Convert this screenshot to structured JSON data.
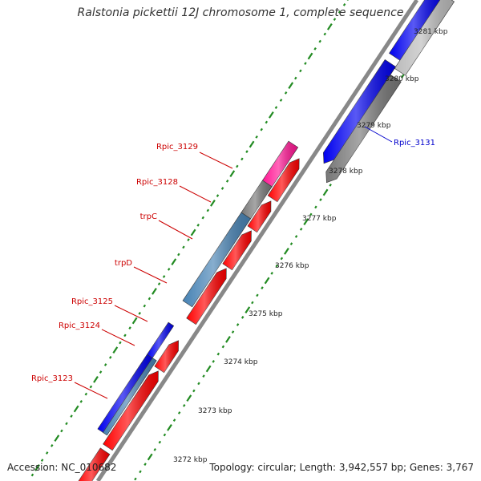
{
  "title": "Ralstonia pickettii 12J chromosome 1, complete sequence",
  "footer": {
    "accession": "Accession: NC_010682",
    "topology": "Topology: circular; Length: 3,942,557 bp; Genes: 3,767"
  },
  "ticks": [
    "3281 kbp",
    "3280 kbp",
    "3279 kbp",
    "3278 kbp",
    "3277 kbp",
    "3276 kbp",
    "3275 kbp",
    "3274 kbp",
    "3273 kbp",
    "3272 kbp"
  ],
  "gene_labels": {
    "rpic_3131": "Rpic_3131",
    "rpic_3129": "Rpic_3129",
    "rpic_3128": "Rpic_3128",
    "trpc": "trpC",
    "trpd": "trpD",
    "rpic_3125": "Rpic_3125",
    "rpic_3124": "Rpic_3124",
    "rpic_3123": "Rpic_3123"
  },
  "colors": {
    "blue": "#0000ee",
    "red": "#ff0000",
    "gray": "#777777",
    "lightgray": "#bbbbbb",
    "steelblue": "#4682b4",
    "pink": "#ff1493",
    "tick_green": "#228b22",
    "backbone": "#888888",
    "label_red": "#cc0000",
    "label_blue": "#0000cc"
  }
}
